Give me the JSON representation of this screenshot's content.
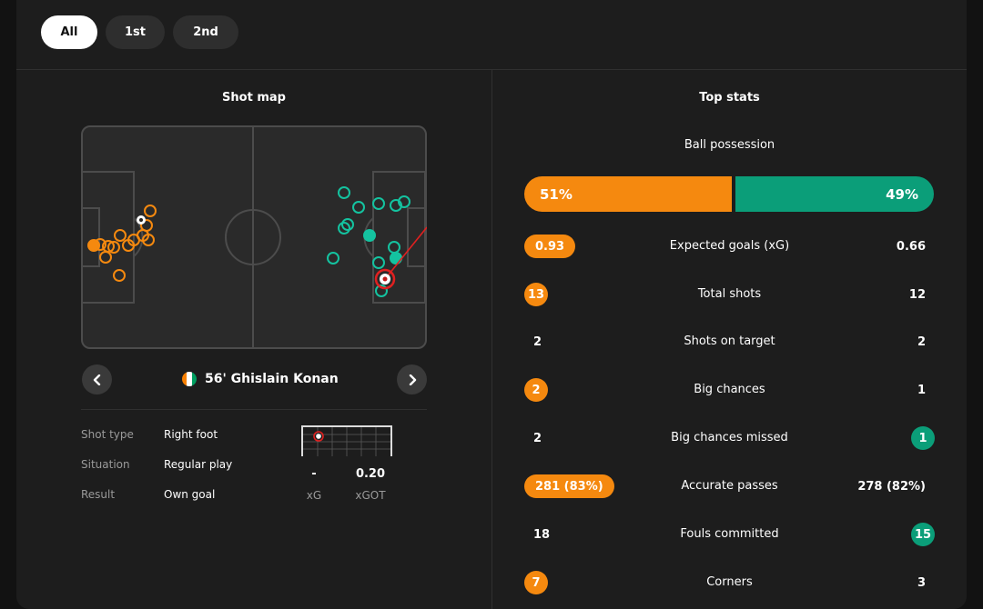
{
  "tabs": [
    {
      "label": "All",
      "active": true
    },
    {
      "label": "1st",
      "active": false
    },
    {
      "label": "2nd",
      "active": false
    }
  ],
  "shot_map": {
    "title": "Shot map",
    "selected_shot": {
      "minute_player": "56' Ghislain Konan",
      "flag_colors": [
        "#f77f00",
        "#ffffff",
        "#009e60"
      ],
      "details": [
        {
          "label": "Shot type",
          "value": "Right foot"
        },
        {
          "label": "Situation",
          "value": "Regular play"
        },
        {
          "label": "Result",
          "value": "Own goal"
        }
      ],
      "xg_value": "-",
      "xg_label": "xG",
      "xgot_value": "0.20",
      "xgot_label": "xGOT"
    },
    "home_color": "#f5890f",
    "away_color": "#14c3a0",
    "prev_icon": "chevron-left-icon",
    "next_icon": "chevron-right-icon"
  },
  "top_stats": {
    "title": "Top stats",
    "possession": {
      "label": "Ball possession",
      "home": "51%",
      "away": "49%",
      "home_pct": 51,
      "away_pct": 49
    },
    "rows": [
      {
        "label": "Expected goals (xG)",
        "home": "0.93",
        "away": "0.66",
        "highlight": "home"
      },
      {
        "label": "Total shots",
        "home": "13",
        "away": "12",
        "highlight": "home"
      },
      {
        "label": "Shots on target",
        "home": "2",
        "away": "2",
        "highlight": "none"
      },
      {
        "label": "Big chances",
        "home": "2",
        "away": "1",
        "highlight": "home"
      },
      {
        "label": "Big chances missed",
        "home": "2",
        "away": "1",
        "highlight": "away"
      },
      {
        "label": "Accurate passes",
        "home": "281 (83%)",
        "away": "278 (82%)",
        "highlight": "home"
      },
      {
        "label": "Fouls committed",
        "home": "18",
        "away": "15",
        "highlight": "away"
      },
      {
        "label": "Corners",
        "home": "7",
        "away": "3",
        "highlight": "home"
      }
    ]
  }
}
